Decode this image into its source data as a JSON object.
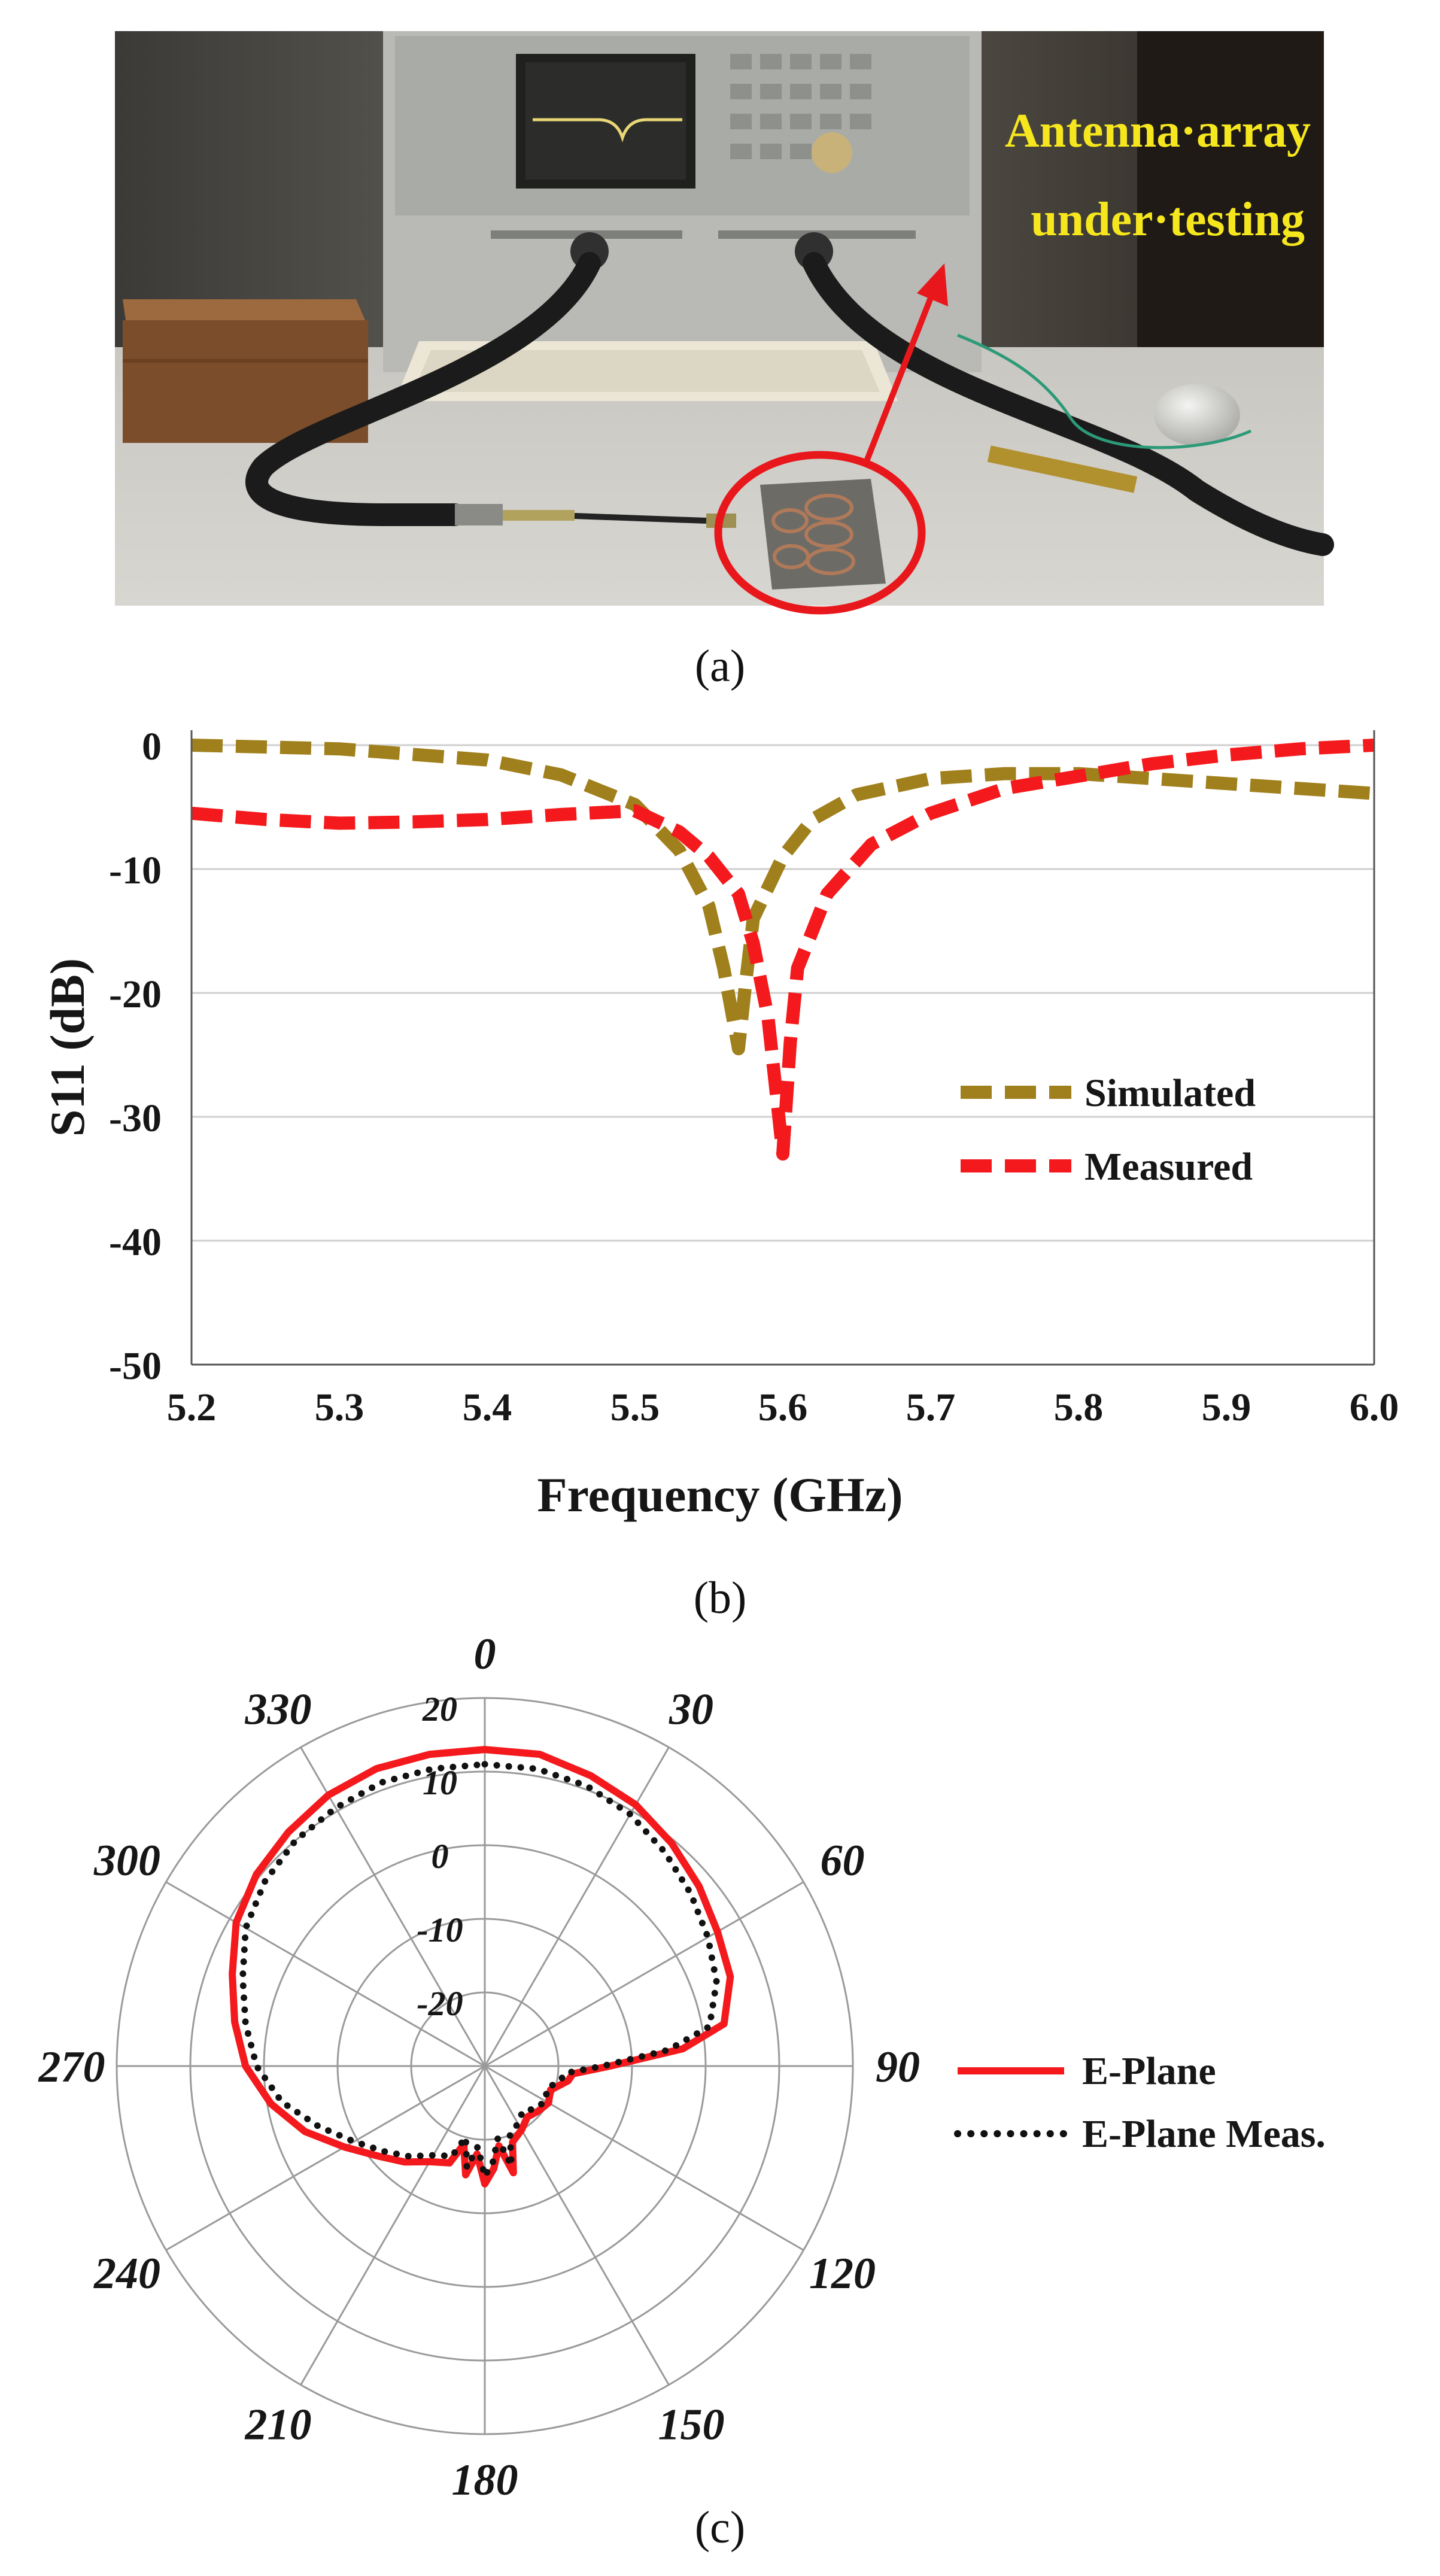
{
  "panel_a": {
    "label": "(a)",
    "annotation_line1": "Antenna·array",
    "annotation_line2": "under·testing",
    "annotation_color": "#f5e61e",
    "highlight_color": "#e8171c"
  },
  "panel_b": {
    "label": "(b)"
  },
  "panel_c": {
    "label": "(c)"
  },
  "chart_data": [
    {
      "type": "line",
      "xlabel": "Frequency (GHz)",
      "ylabel": "S11 (dB)",
      "xlim": [
        5.2,
        6.0
      ],
      "ylim": [
        -50,
        0
      ],
      "xticks": [
        "5.2",
        "5.3",
        "5.4",
        "5.5",
        "5.6",
        "5.7",
        "5.8",
        "5.9",
        "6.0"
      ],
      "yticks": [
        "0",
        "-10",
        "-20",
        "-30",
        "-40",
        "-50"
      ],
      "grid": "horizontal",
      "legend_position": "right",
      "series": [
        {
          "name": "Simulated",
          "color": "#a0801c",
          "dash": "dashed",
          "points": [
            [
              5.2,
              0
            ],
            [
              5.3,
              -0.3
            ],
            [
              5.4,
              -1.2
            ],
            [
              5.45,
              -2.4
            ],
            [
              5.5,
              -4.8
            ],
            [
              5.53,
              -8.5
            ],
            [
              5.55,
              -13
            ],
            [
              5.56,
              -18
            ],
            [
              5.57,
              -24.5
            ],
            [
              5.575,
              -19
            ],
            [
              5.58,
              -14
            ],
            [
              5.6,
              -9
            ],
            [
              5.62,
              -6
            ],
            [
              5.65,
              -4
            ],
            [
              5.7,
              -2.7
            ],
            [
              5.75,
              -2.3
            ],
            [
              5.8,
              -2.3
            ],
            [
              5.85,
              -2.7
            ],
            [
              5.9,
              -3.1
            ],
            [
              5.95,
              -3.5
            ],
            [
              6.0,
              -3.9
            ]
          ]
        },
        {
          "name": "Measured",
          "color": "#f4191c",
          "dash": "dashed",
          "points": [
            [
              5.2,
              -5.5
            ],
            [
              5.25,
              -6
            ],
            [
              5.3,
              -6.3
            ],
            [
              5.35,
              -6.2
            ],
            [
              5.4,
              -6
            ],
            [
              5.45,
              -5.6
            ],
            [
              5.5,
              -5.3
            ],
            [
              5.53,
              -7
            ],
            [
              5.55,
              -9
            ],
            [
              5.57,
              -12
            ],
            [
              5.58,
              -16
            ],
            [
              5.59,
              -22
            ],
            [
              5.6,
              -33
            ],
            [
              5.605,
              -24
            ],
            [
              5.61,
              -18
            ],
            [
              5.63,
              -12
            ],
            [
              5.66,
              -8
            ],
            [
              5.7,
              -5.5
            ],
            [
              5.75,
              -3.5
            ],
            [
              5.8,
              -2.5
            ],
            [
              5.85,
              -1.5
            ],
            [
              5.9,
              -0.8
            ],
            [
              5.95,
              -0.3
            ],
            [
              6.0,
              0
            ]
          ]
        }
      ]
    },
    {
      "type": "polar",
      "angle_ticks": [
        "0",
        "30",
        "60",
        "90",
        "120",
        "150",
        "180",
        "210",
        "240",
        "270",
        "300",
        "330"
      ],
      "radial_ticks": [
        "20",
        "10",
        "0",
        "-10",
        "-20"
      ],
      "rlim": [
        -30,
        20
      ],
      "legend_position": "right",
      "series": [
        {
          "name": "E-Plane",
          "color": "#f4191c",
          "dash": "solid",
          "points": [
            [
              0,
              13
            ],
            [
              10,
              13
            ],
            [
              20,
              12
            ],
            [
              30,
              11
            ],
            [
              40,
              9.5
            ],
            [
              50,
              8
            ],
            [
              60,
              6.5
            ],
            [
              70,
              5.5
            ],
            [
              80,
              3
            ],
            [
              85,
              -3
            ],
            [
              90,
              -13
            ],
            [
              95,
              -18
            ],
            [
              100,
              -18.5
            ],
            [
              110,
              -20.5
            ],
            [
              120,
              -20
            ],
            [
              130,
              -20.5
            ],
            [
              140,
              -21
            ],
            [
              150,
              -20
            ],
            [
              160,
              -19
            ],
            [
              165,
              -15
            ],
            [
              170,
              -19
            ],
            [
              175,
              -16
            ],
            [
              180,
              -14
            ],
            [
              185,
              -18
            ],
            [
              190,
              -15
            ],
            [
              195,
              -19
            ],
            [
              200,
              -16
            ],
            [
              210,
              -15
            ],
            [
              220,
              -13
            ],
            [
              230,
              -11
            ],
            [
              240,
              -8
            ],
            [
              250,
              -4
            ],
            [
              260,
              -0.5
            ],
            [
              270,
              2.5
            ],
            [
              280,
              4.5
            ],
            [
              290,
              6.5
            ],
            [
              300,
              9
            ],
            [
              310,
              10.5
            ],
            [
              320,
              11.5
            ],
            [
              330,
              12.5
            ],
            [
              340,
              13
            ],
            [
              350,
              13
            ]
          ]
        },
        {
          "name": "E-Plane Meas.",
          "color": "#111111",
          "dash": "dotted",
          "points": [
            [
              0,
              11
            ],
            [
              10,
              11
            ],
            [
              20,
              10.5
            ],
            [
              30,
              9.5
            ],
            [
              40,
              8
            ],
            [
              50,
              6.5
            ],
            [
              60,
              5
            ],
            [
              70,
              3.5
            ],
            [
              80,
              1
            ],
            [
              85,
              -5
            ],
            [
              90,
              -14
            ],
            [
              95,
              -19
            ],
            [
              100,
              -19.5
            ],
            [
              110,
              -21
            ],
            [
              120,
              -20.5
            ],
            [
              130,
              -21
            ],
            [
              140,
              -22
            ],
            [
              150,
              -21
            ],
            [
              160,
              -20
            ],
            [
              165,
              -16
            ],
            [
              170,
              -20
            ],
            [
              175,
              -17
            ],
            [
              180,
              -15
            ],
            [
              185,
              -19
            ],
            [
              190,
              -16
            ],
            [
              195,
              -20
            ],
            [
              200,
              -17
            ],
            [
              210,
              -16
            ],
            [
              220,
              -14
            ],
            [
              230,
              -12
            ],
            [
              240,
              -9.5
            ],
            [
              250,
              -6
            ],
            [
              260,
              -2
            ],
            [
              270,
              1
            ],
            [
              280,
              3
            ],
            [
              290,
              5
            ],
            [
              300,
              7.5
            ],
            [
              310,
              9
            ],
            [
              320,
              10
            ],
            [
              330,
              10.5
            ],
            [
              340,
              11
            ],
            [
              350,
              11
            ]
          ]
        }
      ]
    }
  ]
}
